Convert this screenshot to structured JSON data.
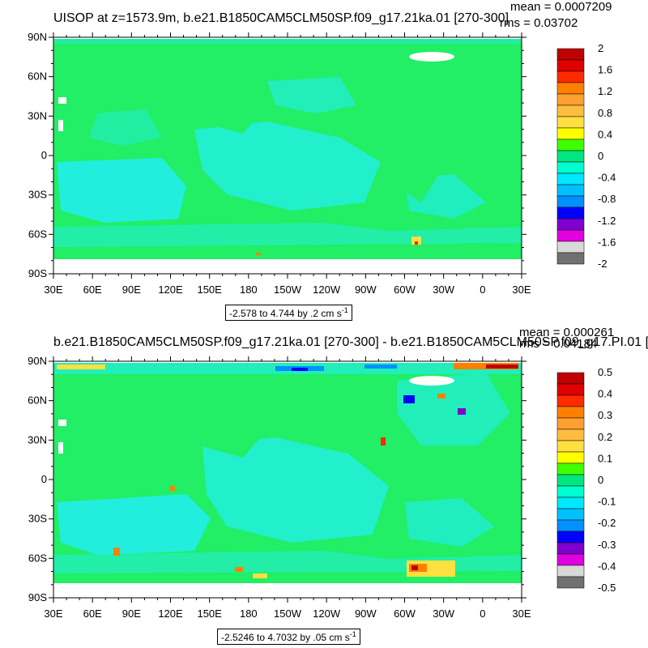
{
  "panels": [
    {
      "title": "UISOP at z=1573.9m, b.e21.B1850CAM5CLM50SP.f09_g17.21ka.01 [270-300]",
      "mean_text": "mean = 0.0007209",
      "rms_text": "rms = 0.03702",
      "range_text": "-2.578 to 4.744 by .2 cm s",
      "range_unit_sup": "-1",
      "lat_labels": [
        "90N",
        "60N",
        "30N",
        "0",
        "30S",
        "60S",
        "90S"
      ],
      "lon_labels": [
        "30E",
        "60E",
        "90E",
        "120E",
        "150E",
        "180",
        "150W",
        "120W",
        "90W",
        "60W",
        "30W",
        "0",
        "30E"
      ],
      "colorbar": {
        "labels": [
          "2",
          "1.6",
          "1.2",
          "0.8",
          "0.4",
          "0",
          "-0.4",
          "-0.8",
          "-1.2",
          "-1.6",
          "-2"
        ],
        "colors": [
          "#c00000",
          "#e00000",
          "#ff2a00",
          "#ff8000",
          "#ffa030",
          "#ffbd40",
          "#ffe040",
          "#ffff00",
          "#40ff00",
          "#00e680",
          "#00ffd0",
          "#00e8ff",
          "#00c0ff",
          "#0090ff",
          "#0000ff",
          "#8000d0",
          "#e000e0",
          "#d8d8d8",
          "#707070"
        ]
      }
    },
    {
      "title": "b.e21.B1850CAM5CLM50SP.f09_g17.21ka.01 [270-300] - b.e21.B1850CAM5CLM50SP.f09_g17.PI.01 [",
      "mean_text": "mean = 0.000261",
      "rms_text": "rms = 0.04184",
      "range_text": "-2.5246 to 4.7032 by .05 cm s",
      "range_unit_sup": "-1",
      "lat_labels": [
        "90N",
        "60N",
        "30N",
        "0",
        "30S",
        "60S",
        "90S"
      ],
      "lon_labels": [
        "30E",
        "60E",
        "90E",
        "120E",
        "150E",
        "180",
        "150W",
        "120W",
        "90W",
        "60W",
        "30W",
        "0",
        "30E"
      ],
      "colorbar": {
        "labels": [
          "0.5",
          "0.4",
          "0.3",
          "0.2",
          "0.1",
          "0",
          "-0.1",
          "-0.2",
          "-0.3",
          "-0.4",
          "-0.5"
        ],
        "colors": [
          "#c00000",
          "#e00000",
          "#ff2a00",
          "#ff8000",
          "#ffa030",
          "#ffbd40",
          "#ffe040",
          "#ffff00",
          "#40ff00",
          "#00e680",
          "#00ffd0",
          "#00e8ff",
          "#00c0ff",
          "#0090ff",
          "#0000ff",
          "#8000d0",
          "#e000e0",
          "#d8d8d8",
          "#707070"
        ]
      }
    }
  ],
  "colors": {
    "zero_band": "#22ee66",
    "neg_band": "#22eedd",
    "ice_white": "#ffffff"
  }
}
